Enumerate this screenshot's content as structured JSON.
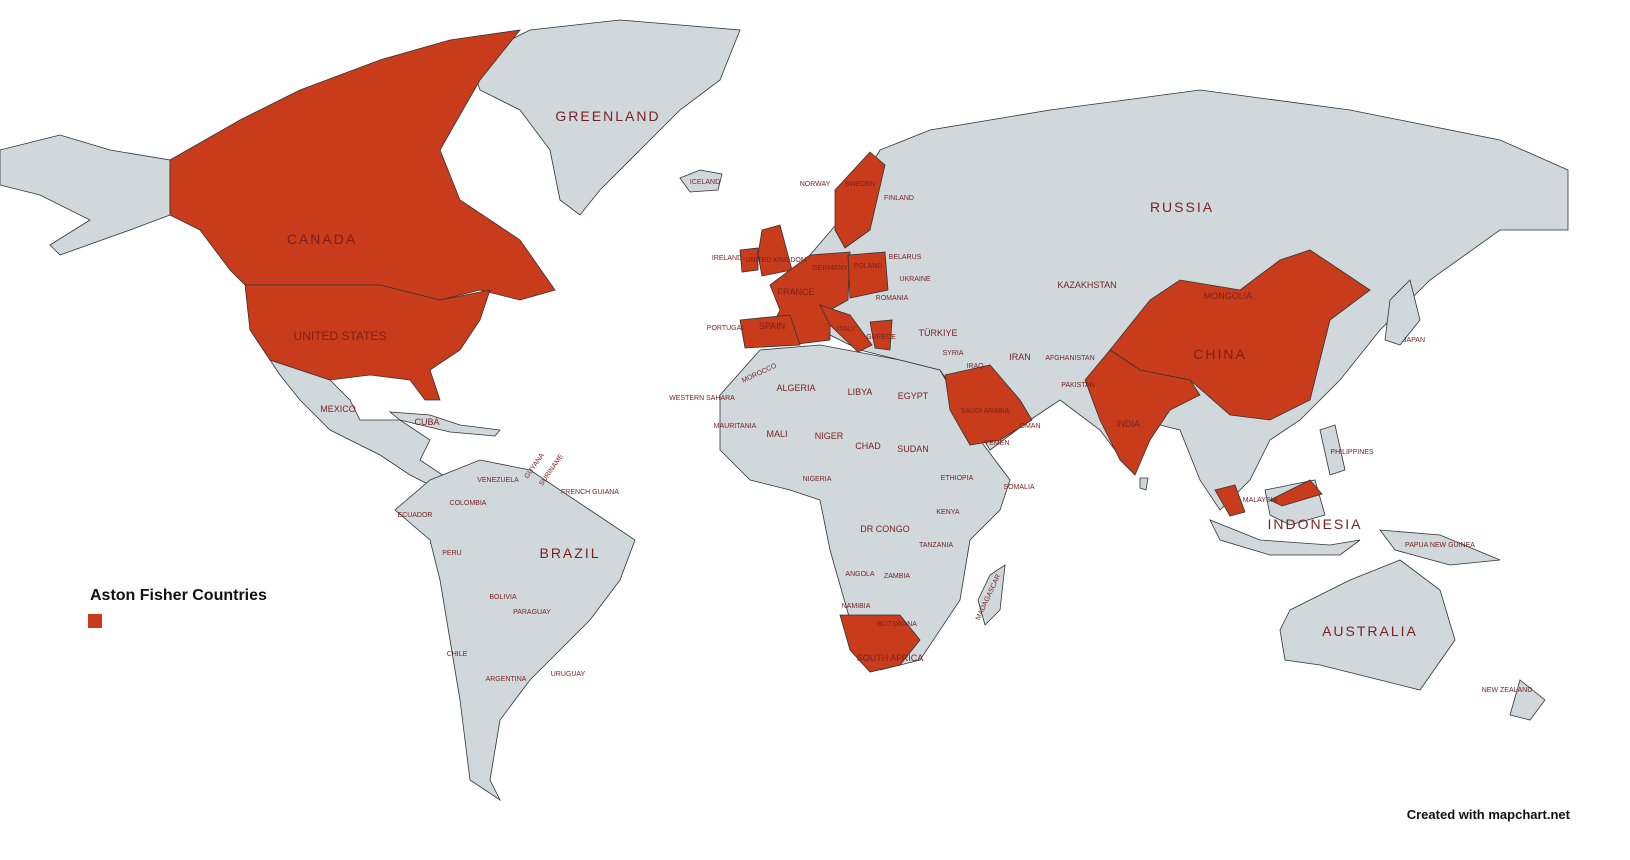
{
  "map": {
    "highlight_color": "#c83c1c",
    "land_color": "#d0d8dc",
    "highlighted_countries": [
      "Canada",
      "United States",
      "Ireland",
      "United Kingdom",
      "France",
      "Spain",
      "Germany",
      "Poland",
      "Italy",
      "Greece",
      "Sweden",
      "Saudi Arabia",
      "India",
      "China",
      "Malaysia",
      "South Africa"
    ],
    "labels": {
      "greenland": "GREENLAND",
      "canada": "CANADA",
      "united_states": "UNITED STATES",
      "mexico": "MEXICO",
      "cuba": "CUBA",
      "russia": "RUSSIA",
      "iceland": "ICELAND",
      "norway": "NORWAY",
      "sweden": "SWEDEN",
      "finland": "FINLAND",
      "ireland": "IRELAND",
      "france": "FRANCE",
      "spain": "SPAIN",
      "portugal": "PORTUGAL",
      "germany": "GERMANY",
      "poland": "POLAND",
      "belarus": "BELARUS",
      "ukraine": "UKRAINE",
      "romania": "ROMANIA",
      "turkiye": "TÜRKIYE",
      "kazakhstan": "KAZAKHSTAN",
      "mongolia": "MONGOLIA",
      "china": "CHINA",
      "iran": "IRAN",
      "iraq": "IRAQ",
      "syria": "SYRIA",
      "saudi_arabia": "SAUDI ARABIA",
      "yemen": "YEMEN",
      "oman": "OMAN",
      "pakistan": "PAKISTAN",
      "afghanistan": "AFGHANISTAN",
      "india": "INDIA",
      "japan": "JAPAN",
      "philippines": "PHILIPPINES",
      "indonesia": "INDONESIA",
      "malaysia": "MALAYSIA",
      "papua_new_guinea": "PAPUA NEW GUINEA",
      "australia": "AUSTRALIA",
      "new_zealand": "NEW ZEALAND",
      "algeria": "ALGERIA",
      "libya": "LIBYA",
      "egypt": "EGYPT",
      "morocco": "MOROCCO",
      "western_sahara": "WESTERN SAHARA",
      "mauritania": "MAURITANIA",
      "mali": "MALI",
      "niger": "NIGER",
      "chad": "CHAD",
      "sudan": "SUDAN",
      "ethiopia": "ETHIOPIA",
      "somalia": "SOMALIA",
      "nigeria": "NIGERIA",
      "kenya": "KENYA",
      "dr_congo": "DR CONGO",
      "tanzania": "TANZANIA",
      "angola": "ANGOLA",
      "zambia": "ZAMBIA",
      "namibia": "NAMIBIA",
      "botswana": "BOTSWANA",
      "madagascar": "MADAGASCAR",
      "south_africa": "SOUTH AFRICA",
      "venezuela": "VENEZUELA",
      "colombia": "COLOMBIA",
      "ecuador": "ECUADOR",
      "peru": "PERU",
      "brazil": "BRAZIL",
      "bolivia": "BOLIVIA",
      "paraguay": "PARAGUAY",
      "chile": "CHILE",
      "argentina": "ARGENTINA",
      "uruguay": "URUGUAY",
      "guyana": "GUYANA",
      "suriname": "SURINAME",
      "french_guiana": "FRENCH GUIANA"
    }
  },
  "legend": {
    "title": "Aston Fisher Countries"
  },
  "credit": "Created with mapchart.net"
}
